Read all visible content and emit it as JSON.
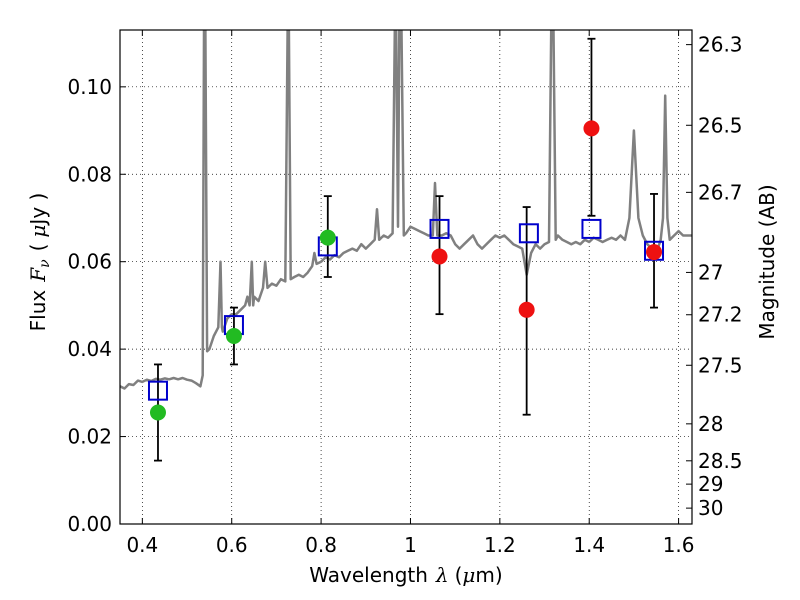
{
  "chart_data": {
    "type": "scatter",
    "title": "",
    "xlabel": {
      "text": "Wavelength",
      "symbol": "λ",
      "unit_prefix": "(",
      "unit_mu": "μ",
      "unit_rest": "m)"
    },
    "ylabel": {
      "text": "Flux",
      "symbol": "F",
      "subscript": "ν",
      "unit_prefix": "(",
      "unit_mu": "μ",
      "unit_rest": "Jy )"
    },
    "y2label": "Magnitude (AB)",
    "xlim": [
      0.35,
      1.63
    ],
    "ylim": [
      0.0,
      0.113
    ],
    "grid": true,
    "x_ticks": [
      {
        "value": 0.4,
        "label": "0.4"
      },
      {
        "value": 0.6,
        "label": "0.6"
      },
      {
        "value": 0.8,
        "label": "0.8"
      },
      {
        "value": 1.0,
        "label": "1"
      },
      {
        "value": 1.2,
        "label": "1.2"
      },
      {
        "value": 1.4,
        "label": "1.4"
      },
      {
        "value": 1.6,
        "label": "1.6"
      }
    ],
    "y_ticks": [
      {
        "value": 0.0,
        "label": "0.00"
      },
      {
        "value": 0.02,
        "label": "0.02"
      },
      {
        "value": 0.04,
        "label": "0.04"
      },
      {
        "value": 0.06,
        "label": "0.06"
      },
      {
        "value": 0.08,
        "label": "0.08"
      },
      {
        "value": 0.1,
        "label": "0.10"
      }
    ],
    "y2_ticks": [
      {
        "mag": 26.3,
        "label": "26.3"
      },
      {
        "mag": 26.5,
        "label": "26.5"
      },
      {
        "mag": 26.7,
        "label": "26.7"
      },
      {
        "mag": 27.0,
        "label": "27"
      },
      {
        "mag": 27.2,
        "label": "27.2"
      },
      {
        "mag": 27.5,
        "label": "27.5"
      },
      {
        "mag": 28.0,
        "label": "28"
      },
      {
        "mag": 28.5,
        "label": "28.5"
      },
      {
        "mag": 29.0,
        "label": "29"
      },
      {
        "mag": 30.0,
        "label": "30"
      }
    ],
    "series": [
      {
        "kind": "line",
        "color": "#808080",
        "points": [
          [
            0.35,
            0.0315
          ],
          [
            0.36,
            0.031
          ],
          [
            0.37,
            0.032
          ],
          [
            0.38,
            0.0318
          ],
          [
            0.39,
            0.0328
          ],
          [
            0.4,
            0.0325
          ],
          [
            0.41,
            0.033
          ],
          [
            0.42,
            0.0327
          ],
          [
            0.43,
            0.0332
          ],
          [
            0.44,
            0.033
          ],
          [
            0.45,
            0.0333
          ],
          [
            0.46,
            0.0331
          ],
          [
            0.47,
            0.0334
          ],
          [
            0.48,
            0.0331
          ],
          [
            0.49,
            0.0334
          ],
          [
            0.5,
            0.033
          ],
          [
            0.51,
            0.0328
          ],
          [
            0.52,
            0.0322
          ],
          [
            0.53,
            0.0315
          ],
          [
            0.535,
            0.034
          ],
          [
            0.538,
            0.113
          ],
          [
            0.541,
            0.113
          ],
          [
            0.545,
            0.0395
          ],
          [
            0.55,
            0.04
          ],
          [
            0.56,
            0.043
          ],
          [
            0.57,
            0.045
          ],
          [
            0.575,
            0.06
          ],
          [
            0.578,
            0.045
          ],
          [
            0.58,
            0.044
          ],
          [
            0.59,
            0.047
          ],
          [
            0.6,
            0.048
          ],
          [
            0.61,
            0.048
          ],
          [
            0.62,
            0.049
          ],
          [
            0.63,
            0.05
          ],
          [
            0.635,
            0.052
          ],
          [
            0.64,
            0.05
          ],
          [
            0.645,
            0.06
          ],
          [
            0.648,
            0.05
          ],
          [
            0.65,
            0.052
          ],
          [
            0.66,
            0.051
          ],
          [
            0.67,
            0.054
          ],
          [
            0.675,
            0.06
          ],
          [
            0.68,
            0.054
          ],
          [
            0.69,
            0.055
          ],
          [
            0.7,
            0.0545
          ],
          [
            0.71,
            0.056
          ],
          [
            0.72,
            0.0555
          ],
          [
            0.725,
            0.113
          ],
          [
            0.728,
            0.113
          ],
          [
            0.732,
            0.056
          ],
          [
            0.74,
            0.0565
          ],
          [
            0.75,
            0.057
          ],
          [
            0.76,
            0.0565
          ],
          [
            0.77,
            0.0575
          ],
          [
            0.78,
            0.059
          ],
          [
            0.785,
            0.062
          ],
          [
            0.79,
            0.0595
          ],
          [
            0.8,
            0.06
          ],
          [
            0.81,
            0.061
          ],
          [
            0.82,
            0.0605
          ],
          [
            0.83,
            0.0615
          ],
          [
            0.84,
            0.061
          ],
          [
            0.85,
            0.062
          ],
          [
            0.86,
            0.0625
          ],
          [
            0.87,
            0.063
          ],
          [
            0.88,
            0.0625
          ],
          [
            0.89,
            0.064
          ],
          [
            0.9,
            0.063
          ],
          [
            0.91,
            0.064
          ],
          [
            0.92,
            0.065
          ],
          [
            0.925,
            0.072
          ],
          [
            0.93,
            0.065
          ],
          [
            0.94,
            0.066
          ],
          [
            0.95,
            0.0655
          ],
          [
            0.96,
            0.0665
          ],
          [
            0.965,
            0.113
          ],
          [
            0.968,
            0.113
          ],
          [
            0.972,
            0.068
          ],
          [
            0.975,
            0.113
          ],
          [
            0.98,
            0.113
          ],
          [
            0.985,
            0.066
          ],
          [
            0.99,
            0.0665
          ],
          [
            1.0,
            0.068
          ],
          [
            1.01,
            0.0675
          ],
          [
            1.02,
            0.067
          ],
          [
            1.03,
            0.0665
          ],
          [
            1.04,
            0.066
          ],
          [
            1.05,
            0.066
          ],
          [
            1.055,
            0.078
          ],
          [
            1.06,
            0.066
          ],
          [
            1.07,
            0.066
          ],
          [
            1.08,
            0.0665
          ],
          [
            1.09,
            0.066
          ],
          [
            1.1,
            0.064
          ],
          [
            1.11,
            0.063
          ],
          [
            1.12,
            0.064
          ],
          [
            1.13,
            0.065
          ],
          [
            1.14,
            0.066
          ],
          [
            1.15,
            0.064
          ],
          [
            1.16,
            0.063
          ],
          [
            1.17,
            0.064
          ],
          [
            1.18,
            0.065
          ],
          [
            1.19,
            0.066
          ],
          [
            1.2,
            0.0655
          ],
          [
            1.21,
            0.066
          ],
          [
            1.22,
            0.065
          ],
          [
            1.23,
            0.064
          ],
          [
            1.24,
            0.0635
          ],
          [
            1.25,
            0.063
          ],
          [
            1.26,
            0.057
          ],
          [
            1.27,
            0.062
          ],
          [
            1.28,
            0.064
          ],
          [
            1.29,
            0.063
          ],
          [
            1.3,
            0.064
          ],
          [
            1.31,
            0.0645
          ],
          [
            1.315,
            0.113
          ],
          [
            1.32,
            0.113
          ],
          [
            1.325,
            0.065
          ],
          [
            1.33,
            0.066
          ],
          [
            1.34,
            0.065
          ],
          [
            1.35,
            0.0645
          ],
          [
            1.36,
            0.064
          ],
          [
            1.37,
            0.0645
          ],
          [
            1.38,
            0.064
          ],
          [
            1.39,
            0.065
          ],
          [
            1.4,
            0.0645
          ],
          [
            1.41,
            0.0655
          ],
          [
            1.42,
            0.065
          ],
          [
            1.43,
            0.0645
          ],
          [
            1.44,
            0.065
          ],
          [
            1.45,
            0.0655
          ],
          [
            1.46,
            0.065
          ],
          [
            1.47,
            0.066
          ],
          [
            1.48,
            0.065
          ],
          [
            1.49,
            0.07
          ],
          [
            1.5,
            0.09
          ],
          [
            1.51,
            0.07
          ],
          [
            1.52,
            0.066
          ],
          [
            1.53,
            0.064
          ],
          [
            1.54,
            0.063
          ],
          [
            1.55,
            0.062
          ],
          [
            1.56,
            0.065
          ],
          [
            1.565,
            0.07
          ],
          [
            1.57,
            0.098
          ],
          [
            1.575,
            0.07
          ],
          [
            1.58,
            0.065
          ],
          [
            1.59,
            0.066
          ],
          [
            1.6,
            0.067
          ],
          [
            1.61,
            0.066
          ],
          [
            1.62,
            0.066
          ],
          [
            1.63,
            0.066
          ]
        ]
      },
      {
        "kind": "markers-square-open",
        "color": "#0000cc",
        "points": [
          [
            0.435,
            0.0305
          ],
          [
            0.605,
            0.0455
          ],
          [
            0.815,
            0.0635
          ],
          [
            1.065,
            0.0675
          ],
          [
            1.265,
            0.0665
          ],
          [
            1.405,
            0.0675
          ],
          [
            1.545,
            0.0625
          ]
        ]
      },
      {
        "kind": "markers-circle-filled",
        "color": "#22bb22",
        "points": [
          [
            0.435,
            0.0255
          ],
          [
            0.605,
            0.043
          ],
          [
            0.815,
            0.0655
          ]
        ]
      },
      {
        "kind": "markers-circle-filled",
        "color": "#ee1111",
        "points": [
          [
            1.065,
            0.0612
          ],
          [
            1.26,
            0.049
          ],
          [
            1.405,
            0.0905
          ],
          [
            1.545,
            0.0622
          ]
        ]
      },
      {
        "kind": "errorbars",
        "color": "#000000",
        "points": [
          {
            "x": 0.435,
            "lo": 0.0145,
            "hi": 0.0365
          },
          {
            "x": 0.605,
            "lo": 0.0365,
            "hi": 0.0495
          },
          {
            "x": 0.815,
            "lo": 0.0565,
            "hi": 0.075
          },
          {
            "x": 1.065,
            "lo": 0.048,
            "hi": 0.075
          },
          {
            "x": 1.26,
            "lo": 0.025,
            "hi": 0.0725
          },
          {
            "x": 1.405,
            "lo": 0.0705,
            "hi": 0.111
          },
          {
            "x": 1.545,
            "lo": 0.0495,
            "hi": 0.0755
          }
        ]
      }
    ]
  }
}
